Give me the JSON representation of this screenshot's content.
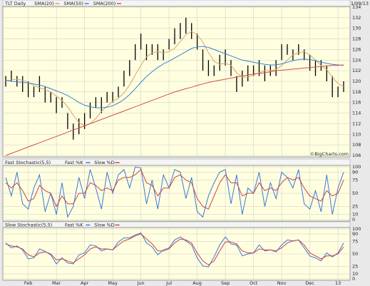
{
  "chart_data": [
    {
      "type": "stock",
      "title": "TLT Daily",
      "subtitle": "1/09/13",
      "annotation": "©BigCharts.com",
      "categories": [
        null,
        null,
        null,
        null,
        "Feb",
        null,
        null,
        null,
        null,
        "Mar",
        null,
        null,
        null,
        null,
        "Apr",
        null,
        null,
        null,
        null,
        "May",
        null,
        null,
        null,
        null,
        "Jun",
        null,
        null,
        null,
        null,
        "Jul",
        null,
        null,
        null,
        null,
        "Aug",
        null,
        null,
        null,
        null,
        "Sep",
        null,
        null,
        null,
        null,
        "Oct",
        null,
        null,
        null,
        null,
        "Nov",
        null,
        null,
        null,
        null,
        "Dec",
        null,
        null,
        null,
        null,
        "13",
        null
      ],
      "high": [
        121,
        122,
        121,
        121,
        120,
        119,
        121,
        119,
        118,
        117,
        117,
        114,
        112,
        113,
        114,
        116,
        117,
        117,
        118,
        118,
        119,
        122,
        124,
        127,
        129,
        127,
        127,
        127,
        126,
        128,
        130,
        131,
        132,
        131,
        129,
        126,
        124,
        123,
        125,
        126,
        124,
        121,
        122,
        123,
        123,
        124,
        123,
        123,
        124,
        127,
        127,
        126,
        127,
        126,
        125,
        124,
        124,
        123,
        121,
        119,
        120
      ],
      "low": [
        119,
        120,
        119,
        118,
        117,
        117,
        118,
        116,
        116,
        114,
        115,
        111,
        109,
        110,
        111,
        113,
        115,
        114,
        116,
        116,
        117,
        119,
        121,
        124,
        126,
        124,
        125,
        124,
        124,
        126,
        127,
        128,
        129,
        128,
        126,
        122,
        121,
        121,
        122,
        123,
        121,
        118,
        119,
        120,
        121,
        121,
        120,
        121,
        121,
        124,
        125,
        124,
        125,
        124,
        122,
        121,
        122,
        120,
        117,
        117,
        118
      ],
      "color": "#000000",
      "series": [
        {
          "name": "SMA(20)",
          "color": "#d9a566",
          "values": [
            120.0,
            120.3,
            120.4,
            120.2,
            119.8,
            119.2,
            118.8,
            118.4,
            118.0,
            117.2,
            116.4,
            115.2,
            113.6,
            112.2,
            111.6,
            112.0,
            113.0,
            114.3,
            115.3,
            116.2,
            116.8,
            117.8,
            119.3,
            121.2,
            123.0,
            124.6,
            125.4,
            125.6,
            125.4,
            125.6,
            126.2,
            127.5,
            128.8,
            129.4,
            128.8,
            127.4,
            125.4,
            123.8,
            123.2,
            123.4,
            123.0,
            121.6,
            120.8,
            120.8,
            121.2,
            121.6,
            122.0,
            122.0,
            122.2,
            123.0,
            124.0,
            125.0,
            125.4,
            125.6,
            125.0,
            124.0,
            123.0,
            122.2,
            120.8,
            119.6,
            119.0
          ]
        },
        {
          "name": "SMA(50)",
          "color": "#3b82d8",
          "values": [
            120.2,
            120.0,
            119.9,
            119.8,
            119.7,
            119.5,
            119.3,
            119.0,
            118.6,
            118.2,
            117.8,
            117.3,
            116.7,
            116.0,
            115.5,
            115.2,
            115.0,
            115.0,
            115.1,
            115.4,
            115.9,
            116.6,
            117.5,
            118.6,
            119.8,
            120.9,
            121.8,
            122.6,
            123.3,
            123.8,
            124.4,
            125.0,
            125.6,
            126.2,
            126.5,
            126.6,
            126.4,
            126.0,
            125.6,
            125.2,
            124.8,
            124.4,
            124.0,
            123.8,
            123.6,
            123.4,
            123.2,
            123.1,
            123.1,
            123.3,
            123.6,
            123.9,
            124.1,
            124.2,
            124.1,
            123.9,
            123.6,
            123.4,
            123.2,
            123.1,
            123.0
          ]
        },
        {
          "name": "SMA(200)",
          "color": "#d05050",
          "values": [
            106.0,
            106.4,
            106.8,
            107.2,
            107.6,
            108.0,
            108.4,
            108.8,
            109.2,
            109.6,
            110.0,
            110.4,
            110.8,
            111.2,
            111.6,
            112.0,
            112.4,
            112.8,
            113.2,
            113.6,
            114.0,
            114.4,
            114.8,
            115.2,
            115.6,
            116.0,
            116.4,
            116.8,
            117.2,
            117.6,
            118.0,
            118.3,
            118.6,
            118.9,
            119.2,
            119.5,
            119.8,
            120.0,
            120.2,
            120.4,
            120.6,
            120.8,
            121.0,
            121.2,
            121.4,
            121.5,
            121.6,
            121.8,
            122.0,
            122.1,
            122.2,
            122.3,
            122.4,
            122.5,
            122.6,
            122.7,
            122.8,
            122.9,
            123.0,
            123.0,
            123.1
          ]
        }
      ],
      "ylim": [
        106,
        134
      ],
      "yticks": [
        106,
        108,
        110,
        112,
        114,
        116,
        118,
        120,
        122,
        124,
        126,
        128,
        130,
        132,
        134
      ],
      "grid": true
    },
    {
      "type": "line",
      "title": "Fast Stochastic(5,5)",
      "series": [
        {
          "name": "Fast %K",
          "color": "#3b78d8",
          "values": [
            80,
            45,
            90,
            30,
            20,
            60,
            85,
            15,
            50,
            10,
            70,
            5,
            25,
            80,
            40,
            95,
            60,
            20,
            90,
            50,
            85,
            95,
            60,
            100,
            98,
            30,
            75,
            20,
            85,
            60,
            95,
            90,
            40,
            80,
            15,
            5,
            45,
            70,
            90,
            95,
            30,
            85,
            10,
            60,
            50,
            90,
            25,
            70,
            40,
            90,
            80,
            60,
            95,
            30,
            20,
            55,
            15,
            85,
            10,
            60,
            90
          ]
        },
        {
          "name": "Slow %D",
          "color": "#c84545",
          "values": [
            70,
            60,
            70,
            55,
            35,
            40,
            65,
            55,
            50,
            25,
            45,
            30,
            30,
            50,
            50,
            70,
            65,
            55,
            60,
            55,
            75,
            80,
            80,
            85,
            95,
            70,
            65,
            45,
            60,
            60,
            80,
            85,
            75,
            70,
            40,
            25,
            20,
            45,
            70,
            85,
            70,
            70,
            45,
            50,
            50,
            70,
            55,
            60,
            55,
            70,
            80,
            75,
            80,
            60,
            45,
            40,
            35,
            55,
            45,
            50,
            75
          ]
        }
      ],
      "ylim": [
        0,
        100
      ],
      "yticks": [
        0,
        10,
        25,
        50,
        75,
        90,
        100
      ],
      "grid": true
    },
    {
      "type": "line",
      "title": "Slow Stochastic(5,5)",
      "series": [
        {
          "name": "Fast %K",
          "color": "#3b78d8",
          "values": [
            72,
            62,
            66,
            58,
            40,
            42,
            60,
            55,
            48,
            30,
            42,
            32,
            30,
            48,
            52,
            68,
            66,
            56,
            60,
            58,
            74,
            82,
            82,
            88,
            92,
            72,
            64,
            48,
            58,
            62,
            78,
            84,
            76,
            68,
            42,
            26,
            24,
            44,
            68,
            84,
            70,
            68,
            46,
            50,
            52,
            68,
            56,
            58,
            54,
            68,
            78,
            76,
            78,
            62,
            46,
            42,
            36,
            52,
            44,
            52,
            72
          ]
        },
        {
          "name": "Slow %D",
          "color": "#c84545",
          "values": [
            70,
            66,
            64,
            60,
            48,
            44,
            52,
            54,
            50,
            38,
            40,
            36,
            32,
            40,
            48,
            60,
            64,
            60,
            60,
            58,
            68,
            76,
            80,
            86,
            90,
            80,
            70,
            56,
            56,
            60,
            72,
            80,
            78,
            72,
            52,
            36,
            28,
            36,
            56,
            74,
            74,
            70,
            56,
            52,
            52,
            60,
            58,
            58,
            56,
            62,
            72,
            76,
            78,
            68,
            52,
            46,
            40,
            46,
            46,
            50,
            64
          ]
        }
      ],
      "ylim": [
        0,
        100
      ],
      "yticks": [
        0,
        10,
        25,
        50,
        75,
        90,
        100
      ],
      "grid": true
    }
  ]
}
